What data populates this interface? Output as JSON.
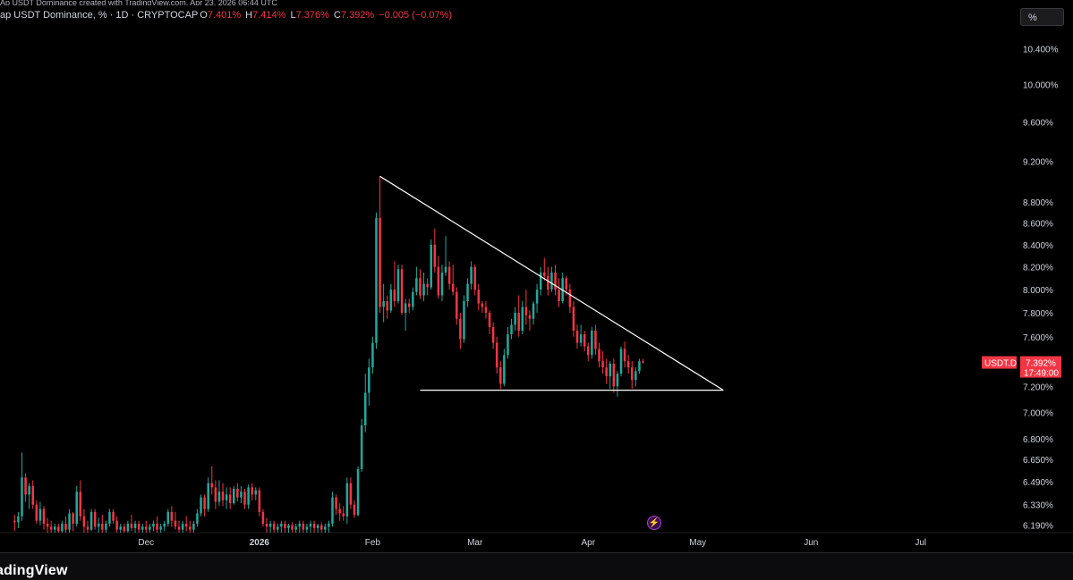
{
  "header": {
    "top_line": "Ap USDT Dominance created with TradingView.com, Apr 23, 2026 06:44 UTC",
    "title": "ap USDT Dominance, % · 1D · CRYPTOCAP",
    "open_label": "O",
    "open_value": "7.401%",
    "high_label": "H",
    "high_value": "7.414%",
    "low_label": "L",
    "low_value": "7.376%",
    "close_label": "C",
    "close_value": "7.392%",
    "change": "−0.005 (−0.07%)"
  },
  "toolbar": {
    "percent_button": "%"
  },
  "footer": {
    "brand": "adingView"
  },
  "price_tag": {
    "symbol": "USDT.D",
    "price": "7.392%",
    "countdown": "17:49:00",
    "color": "#f23645"
  },
  "colors": {
    "up": "#26a69a",
    "down": "#f23645",
    "background": "#000000",
    "trendline": "#ffffff"
  },
  "chart_data": {
    "type": "candlestick",
    "title": "USDT Dominance, % · 1D · CRYPTOCAP",
    "scale": "log",
    "ylim": [
      6.14,
      10.65
    ],
    "x_tick_labels": [
      "Dec",
      "2026",
      "Feb",
      "Mar",
      "Apr",
      "May",
      "Jun",
      "Jul"
    ],
    "y_tick_labels": [
      "10.400%",
      "10.000%",
      "9.600%",
      "9.200%",
      "8.800%",
      "8.600%",
      "8.400%",
      "8.200%",
      "8.000%",
      "7.800%",
      "7.600%",
      "7.400%",
      "7.200%",
      "7.000%",
      "6.800%",
      "6.650%",
      "6.490%",
      "6.330%",
      "6.190%"
    ],
    "y_tick_values": [
      10.4,
      10.0,
      9.6,
      9.2,
      8.8,
      8.6,
      8.4,
      8.2,
      8.0,
      7.8,
      7.6,
      7.4,
      7.2,
      7.0,
      6.8,
      6.65,
      6.49,
      6.33,
      6.19
    ],
    "x_range_days": [
      -40,
      227
    ],
    "x_tick_days": [
      0,
      31,
      62,
      90,
      121,
      151,
      182,
      212
    ],
    "candles": [
      [
        -36,
        6.22,
        6.26,
        6.15,
        6.21
      ],
      [
        -35,
        6.21,
        6.28,
        6.17,
        6.25
      ],
      [
        -34,
        6.25,
        6.7,
        6.22,
        6.52
      ],
      [
        -33,
        6.52,
        6.55,
        6.35,
        6.4
      ],
      [
        -32,
        6.4,
        6.48,
        6.3,
        6.46
      ],
      [
        -31,
        6.46,
        6.5,
        6.3,
        6.33
      ],
      [
        -30,
        6.33,
        6.36,
        6.2,
        6.22
      ],
      [
        -29,
        6.22,
        6.35,
        6.19,
        6.3
      ],
      [
        -28,
        6.3,
        6.32,
        6.16,
        6.2
      ],
      [
        -27,
        6.2,
        6.24,
        6.14,
        6.18
      ],
      [
        -26,
        6.18,
        6.22,
        6.14,
        6.16
      ],
      [
        -25,
        6.16,
        6.2,
        6.14,
        6.18
      ],
      [
        -24,
        6.18,
        6.2,
        6.14,
        6.15
      ],
      [
        -23,
        6.15,
        6.22,
        6.14,
        6.2
      ],
      [
        -22,
        6.2,
        6.25,
        6.14,
        6.16
      ],
      [
        -21,
        6.16,
        6.3,
        6.14,
        6.27
      ],
      [
        -20,
        6.27,
        6.28,
        6.15,
        6.2
      ],
      [
        -19,
        6.2,
        6.46,
        6.18,
        6.42
      ],
      [
        -18,
        6.42,
        6.5,
        6.22,
        6.25
      ],
      [
        -17,
        6.25,
        6.3,
        6.14,
        6.18
      ],
      [
        -16,
        6.18,
        6.22,
        6.14,
        6.16
      ],
      [
        -15,
        6.16,
        6.3,
        6.15,
        6.28
      ],
      [
        -14,
        6.28,
        6.3,
        6.16,
        6.18
      ],
      [
        -13,
        6.18,
        6.24,
        6.14,
        6.2
      ],
      [
        -12,
        6.2,
        6.26,
        6.14,
        6.16
      ],
      [
        -11,
        6.16,
        6.22,
        6.14,
        6.2
      ],
      [
        -10,
        6.2,
        6.3,
        6.18,
        6.28
      ],
      [
        -9,
        6.28,
        6.3,
        6.2,
        6.22
      ],
      [
        -8,
        6.22,
        6.25,
        6.14,
        6.16
      ],
      [
        -7,
        6.16,
        6.2,
        6.14,
        6.18
      ],
      [
        -6,
        6.18,
        6.2,
        6.14,
        6.15
      ],
      [
        -5,
        6.15,
        6.22,
        6.14,
        6.2
      ],
      [
        -4,
        6.2,
        6.26,
        6.15,
        6.17
      ],
      [
        -3,
        6.17,
        6.22,
        6.14,
        6.2
      ],
      [
        -2,
        6.2,
        6.22,
        6.14,
        6.16
      ],
      [
        -1,
        6.16,
        6.2,
        6.14,
        6.18
      ],
      [
        0,
        6.18,
        6.22,
        6.14,
        6.16
      ],
      [
        1,
        6.16,
        6.2,
        6.14,
        6.18
      ],
      [
        2,
        6.18,
        6.22,
        6.15,
        6.2
      ],
      [
        3,
        6.2,
        6.25,
        6.14,
        6.16
      ],
      [
        4,
        6.16,
        6.2,
        6.14,
        6.18
      ],
      [
        5,
        6.18,
        6.22,
        6.15,
        6.2
      ],
      [
        6,
        6.2,
        6.3,
        6.18,
        6.28
      ],
      [
        7,
        6.28,
        6.32,
        6.18,
        6.22
      ],
      [
        8,
        6.22,
        6.28,
        6.16,
        6.18
      ],
      [
        9,
        6.18,
        6.22,
        6.14,
        6.16
      ],
      [
        10,
        6.16,
        6.22,
        6.14,
        6.2
      ],
      [
        11,
        6.2,
        6.25,
        6.15,
        6.18
      ],
      [
        12,
        6.18,
        6.22,
        6.14,
        6.16
      ],
      [
        13,
        6.16,
        6.22,
        6.14,
        6.2
      ],
      [
        14,
        6.2,
        6.3,
        6.18,
        6.27
      ],
      [
        15,
        6.27,
        6.4,
        6.25,
        6.38
      ],
      [
        16,
        6.38,
        6.4,
        6.25,
        6.3
      ],
      [
        17,
        6.3,
        6.52,
        6.28,
        6.48
      ],
      [
        18,
        6.48,
        6.6,
        6.4,
        6.45
      ],
      [
        19,
        6.45,
        6.5,
        6.3,
        6.35
      ],
      [
        20,
        6.35,
        6.5,
        6.32,
        6.42
      ],
      [
        21,
        6.42,
        6.48,
        6.32,
        6.36
      ],
      [
        22,
        6.36,
        6.45,
        6.3,
        6.4
      ],
      [
        23,
        6.4,
        6.45,
        6.3,
        6.34
      ],
      [
        24,
        6.34,
        6.46,
        6.33,
        6.44
      ],
      [
        25,
        6.44,
        6.48,
        6.35,
        6.38
      ],
      [
        26,
        6.38,
        6.46,
        6.34,
        6.42
      ],
      [
        27,
        6.42,
        6.44,
        6.3,
        6.33
      ],
      [
        28,
        6.33,
        6.47,
        6.3,
        6.45
      ],
      [
        29,
        6.45,
        6.48,
        6.36,
        6.4
      ],
      [
        30,
        6.4,
        6.45,
        6.36,
        6.43
      ],
      [
        31,
        6.43,
        6.45,
        6.25,
        6.28
      ],
      [
        32,
        6.28,
        6.3,
        6.18,
        6.2
      ],
      [
        33,
        6.2,
        6.24,
        6.14,
        6.18
      ],
      [
        34,
        6.18,
        6.22,
        6.14,
        6.2
      ],
      [
        35,
        6.2,
        6.22,
        6.14,
        6.16
      ],
      [
        36,
        6.16,
        6.2,
        6.14,
        6.18
      ],
      [
        37,
        6.18,
        6.22,
        6.14,
        6.2
      ],
      [
        38,
        6.2,
        6.22,
        6.14,
        6.17
      ],
      [
        39,
        6.17,
        6.2,
        6.14,
        6.19
      ],
      [
        40,
        6.19,
        6.21,
        6.14,
        6.16
      ],
      [
        41,
        6.16,
        6.2,
        6.14,
        6.18
      ],
      [
        42,
        6.18,
        6.22,
        6.14,
        6.2
      ],
      [
        43,
        6.2,
        6.22,
        6.14,
        6.16
      ],
      [
        44,
        6.16,
        6.2,
        6.14,
        6.18
      ],
      [
        45,
        6.18,
        6.22,
        6.14,
        6.2
      ],
      [
        46,
        6.2,
        6.22,
        6.14,
        6.17
      ],
      [
        47,
        6.17,
        6.2,
        6.14,
        6.19
      ],
      [
        48,
        6.19,
        6.21,
        6.14,
        6.16
      ],
      [
        49,
        6.16,
        6.2,
        6.14,
        6.18
      ],
      [
        50,
        6.18,
        6.22,
        6.14,
        6.2
      ],
      [
        51,
        6.2,
        6.42,
        6.18,
        6.38
      ],
      [
        52,
        6.38,
        6.4,
        6.26,
        6.3
      ],
      [
        53,
        6.3,
        6.34,
        6.22,
        6.27
      ],
      [
        54,
        6.27,
        6.32,
        6.22,
        6.25
      ],
      [
        55,
        6.25,
        6.52,
        6.2,
        6.48
      ],
      [
        56,
        6.48,
        6.52,
        6.3,
        6.33
      ],
      [
        57,
        6.33,
        6.36,
        6.24,
        6.26
      ],
      [
        58,
        6.26,
        6.6,
        6.25,
        6.58
      ],
      [
        59,
        6.58,
        6.95,
        6.56,
        6.9
      ],
      [
        60,
        6.9,
        7.3,
        6.85,
        7.15
      ],
      [
        61,
        7.15,
        7.42,
        7.05,
        7.35
      ],
      [
        62,
        7.35,
        7.6,
        7.3,
        7.55
      ],
      [
        63,
        7.55,
        8.7,
        7.5,
        8.65
      ],
      [
        64,
        8.65,
        9.05,
        7.8,
        7.85
      ],
      [
        65,
        7.85,
        8.05,
        7.72,
        7.9
      ],
      [
        66,
        7.9,
        7.95,
        7.75,
        7.82
      ],
      [
        67,
        7.82,
        8.05,
        7.8,
        8.0
      ],
      [
        68,
        8.0,
        8.25,
        7.85,
        7.9
      ],
      [
        69,
        7.9,
        8.22,
        7.88,
        8.18
      ],
      [
        70,
        8.18,
        8.22,
        7.78,
        7.8
      ],
      [
        71,
        7.8,
        7.92,
        7.65,
        7.88
      ],
      [
        72,
        7.88,
        7.92,
        7.8,
        7.85
      ],
      [
        73,
        7.85,
        8.02,
        7.82,
        7.98
      ],
      [
        74,
        7.98,
        8.2,
        7.95,
        8.1
      ],
      [
        75,
        8.1,
        8.18,
        7.92,
        7.95
      ],
      [
        76,
        7.95,
        8.15,
        7.9,
        8.05
      ],
      [
        77,
        8.05,
        8.1,
        7.95,
        8.02
      ],
      [
        78,
        8.02,
        8.45,
        8.0,
        8.4
      ],
      [
        79,
        8.4,
        8.55,
        8.15,
        8.2
      ],
      [
        80,
        8.2,
        8.3,
        7.92,
        7.95
      ],
      [
        81,
        7.95,
        8.22,
        7.9,
        8.15
      ],
      [
        82,
        8.15,
        8.48,
        8.12,
        8.2
      ],
      [
        83,
        8.2,
        8.25,
        8.0,
        8.05
      ],
      [
        84,
        8.05,
        8.22,
        7.95,
        7.98
      ],
      [
        85,
        7.98,
        8.02,
        7.7,
        7.75
      ],
      [
        86,
        7.75,
        7.8,
        7.5,
        7.58
      ],
      [
        87,
        7.58,
        7.95,
        7.55,
        7.9
      ],
      [
        88,
        7.9,
        8.1,
        7.85,
        8.05
      ],
      [
        89,
        8.05,
        8.25,
        8.0,
        8.2
      ],
      [
        90,
        8.2,
        8.22,
        7.95,
        8.0
      ],
      [
        91,
        8.0,
        8.05,
        7.82,
        7.88
      ],
      [
        92,
        7.88,
        7.9,
        7.8,
        7.85
      ],
      [
        93,
        7.85,
        7.9,
        7.75,
        7.8
      ],
      [
        94,
        7.8,
        7.82,
        7.62,
        7.68
      ],
      [
        95,
        7.68,
        7.72,
        7.5,
        7.55
      ],
      [
        96,
        7.55,
        7.6,
        7.3,
        7.35
      ],
      [
        97,
        7.35,
        7.4,
        7.18,
        7.22
      ],
      [
        98,
        7.22,
        7.5,
        7.2,
        7.45
      ],
      [
        99,
        7.45,
        7.68,
        7.42,
        7.62
      ],
      [
        100,
        7.62,
        7.75,
        7.58,
        7.7
      ],
      [
        101,
        7.7,
        7.85,
        7.65,
        7.8
      ],
      [
        102,
        7.8,
        7.95,
        7.6,
        7.65
      ],
      [
        103,
        7.65,
        7.9,
        7.62,
        7.85
      ],
      [
        104,
        7.85,
        8.0,
        7.7,
        7.78
      ],
      [
        105,
        7.78,
        7.82,
        7.65,
        7.75
      ],
      [
        106,
        7.75,
        7.9,
        7.7,
        7.88
      ],
      [
        107,
        7.88,
        8.05,
        7.8,
        8.0
      ],
      [
        108,
        8.0,
        8.2,
        7.95,
        8.15
      ],
      [
        109,
        8.15,
        8.28,
        8.08,
        8.12
      ],
      [
        110,
        8.12,
        8.2,
        7.95,
        8.0
      ],
      [
        111,
        8.0,
        8.2,
        7.98,
        8.15
      ],
      [
        112,
        8.15,
        8.22,
        7.95,
        8.0
      ],
      [
        113,
        8.0,
        8.1,
        7.85,
        7.9
      ],
      [
        114,
        7.9,
        8.15,
        7.88,
        8.1
      ],
      [
        115,
        8.1,
        8.12,
        7.95,
        8.0
      ],
      [
        116,
        8.0,
        8.05,
        7.8,
        7.85
      ],
      [
        117,
        7.85,
        7.9,
        7.6,
        7.65
      ],
      [
        118,
        7.65,
        7.7,
        7.5,
        7.55
      ],
      [
        119,
        7.55,
        7.7,
        7.52,
        7.62
      ],
      [
        120,
        7.62,
        7.65,
        7.48,
        7.52
      ],
      [
        121,
        7.52,
        7.55,
        7.4,
        7.45
      ],
      [
        122,
        7.45,
        7.68,
        7.42,
        7.65
      ],
      [
        123,
        7.65,
        7.7,
        7.45,
        7.5
      ],
      [
        124,
        7.5,
        7.55,
        7.35,
        7.4
      ],
      [
        125,
        7.4,
        7.48,
        7.3,
        7.35
      ],
      [
        126,
        7.35,
        7.42,
        7.22,
        7.28
      ],
      [
        127,
        7.28,
        7.4,
        7.18,
        7.38
      ],
      [
        128,
        7.38,
        7.42,
        7.15,
        7.2
      ],
      [
        129,
        7.2,
        7.32,
        7.12,
        7.3
      ],
      [
        130,
        7.3,
        7.52,
        7.28,
        7.5
      ],
      [
        131,
        7.5,
        7.56,
        7.35,
        7.4
      ],
      [
        132,
        7.4,
        7.45,
        7.3,
        7.35
      ],
      [
        133,
        7.35,
        7.4,
        7.18,
        7.25
      ],
      [
        134,
        7.25,
        7.35,
        7.2,
        7.32
      ],
      [
        135,
        7.32,
        7.42,
        7.3,
        7.4
      ],
      [
        136,
        7.4,
        7.42,
        7.38,
        7.39
      ]
    ],
    "support_line": {
      "price": 7.17,
      "from_day": 75,
      "to_day": 158
    },
    "resistance_line": {
      "from": [
        64,
        9.05
      ],
      "to": [
        158,
        7.17
      ]
    }
  }
}
